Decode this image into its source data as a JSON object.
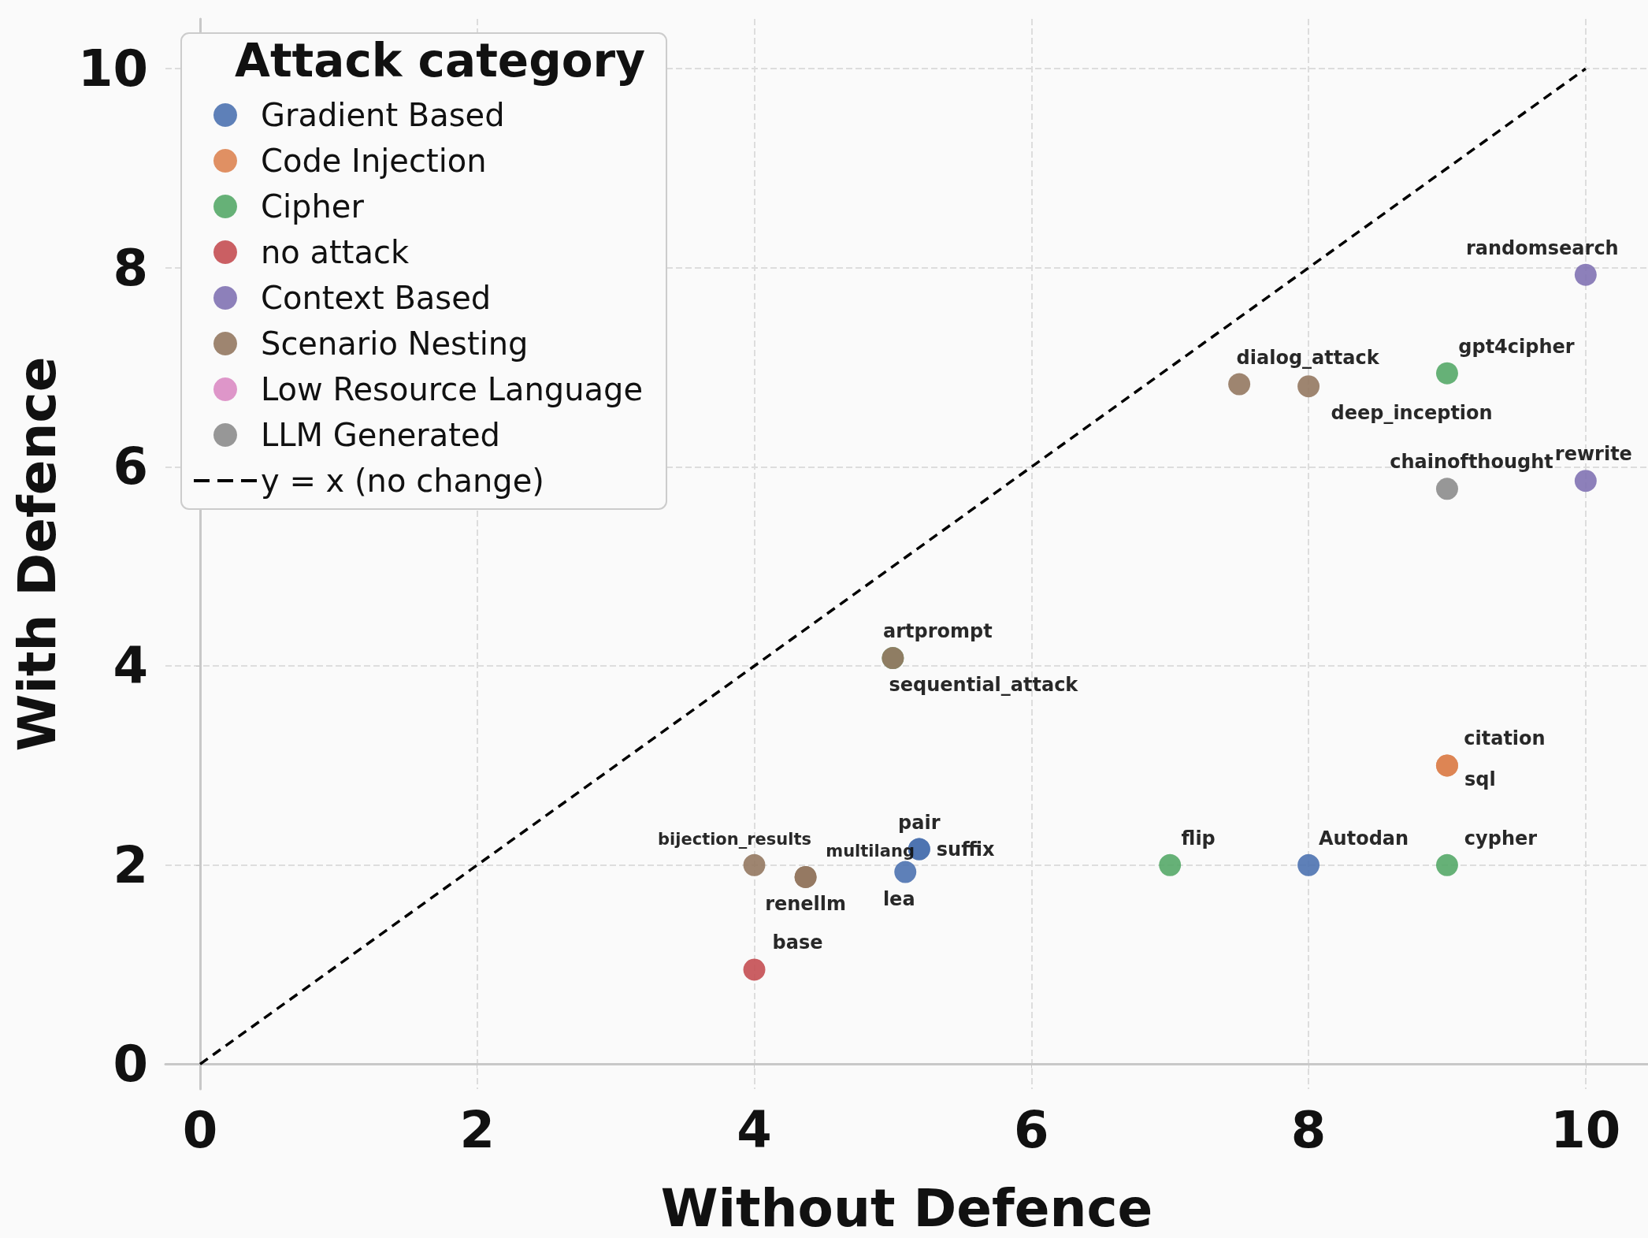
{
  "chart_data": {
    "type": "scatter",
    "xlabel": "Without Defence",
    "ylabel": "With Defence",
    "legend_title": "Attack category",
    "xlim": [
      -0.25,
      10.45
    ],
    "ylim": [
      -0.25,
      10.5
    ],
    "xticks": [
      0,
      2,
      4,
      6,
      8,
      10
    ],
    "yticks": [
      0,
      2,
      4,
      6,
      8,
      10
    ],
    "grid": true,
    "legend": "top left",
    "marker": "circle",
    "series": [
      {
        "name": "Gradient Based",
        "color": "#4c72b0",
        "x": [
          5.19,
          5.19,
          5.09,
          8.0
        ],
        "values": [
          2.16,
          2.16,
          1.93,
          2.0
        ],
        "value_labels": [
          "pair",
          "suffix",
          "lea",
          "Autodan"
        ]
      },
      {
        "name": "Code Injection",
        "color": "#dd8452",
        "x": [
          9.0,
          9.0
        ],
        "values": [
          3.0,
          3.0
        ],
        "value_labels": [
          "citation",
          "sql"
        ]
      },
      {
        "name": "Cipher",
        "color": "#55a868",
        "x": [
          5.0,
          9.0,
          7.0,
          9.0
        ],
        "values": [
          4.08,
          6.94,
          2.0,
          2.0
        ],
        "value_labels": [
          "artprompt",
          "gpt4cipher",
          "flip",
          "cypher"
        ]
      },
      {
        "name": "no attack",
        "color": "#c44e52",
        "x": [
          4.0
        ],
        "values": [
          0.95
        ],
        "value_labels": [
          "base"
        ]
      },
      {
        "name": "Context Based",
        "color": "#8172b3",
        "x": [
          10.0,
          10.0
        ],
        "values": [
          7.93,
          5.86
        ],
        "value_labels": [
          "randomsearch",
          "rewrite"
        ]
      },
      {
        "name": "Scenario Nesting",
        "color": "#937860",
        "x": [
          7.5,
          8.0,
          5.0,
          4.0,
          4.37,
          4.37
        ],
        "values": [
          6.83,
          6.81,
          4.08,
          2.0,
          1.88,
          1.88
        ],
        "value_labels": [
          "dialog_attack",
          "deep_inception",
          "sequential_attack",
          "bijection_results",
          "renellm",
          "multilang"
        ]
      },
      {
        "name": "Low Resource Language",
        "color": "#da8bc3"
      },
      {
        "name": "LLM Generated",
        "color": "#8c8c8c",
        "x": [
          9.0
        ],
        "values": [
          5.78
        ],
        "value_labels": [
          "chainofthought"
        ]
      },
      {
        "name": "y = x (no change)",
        "type": "line",
        "color": "#000000",
        "line_style": "dashed",
        "marker": "none",
        "x": [
          0,
          10
        ],
        "values": [
          0,
          10
        ]
      }
    ]
  }
}
